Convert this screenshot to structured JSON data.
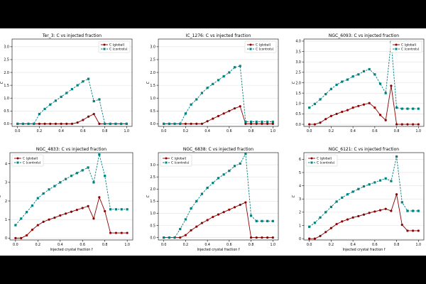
{
  "chart_data": [
    {
      "type": "line",
      "title": "Ter_3: C vs injected fraction",
      "xlabel": "",
      "ylabel": "C",
      "xlim": [
        -0.05,
        1.05
      ],
      "ylim": [
        -0.1,
        3.3
      ],
      "xticks": [
        "0.0",
        "0.2",
        "0.4",
        "0.6",
        "0.8",
        "1.0"
      ],
      "xtick_values": [
        0,
        0.2,
        0.4,
        0.6,
        0.8,
        1.0
      ],
      "yticks": [
        "0.0",
        "0.5",
        "1.0",
        "1.5",
        "2.0",
        "2.5",
        "3.0"
      ],
      "ytick_values": [
        0,
        0.5,
        1.0,
        1.5,
        2.0,
        2.5,
        3.0
      ],
      "x": [
        0,
        0.05,
        0.1,
        0.15,
        0.2,
        0.25,
        0.3,
        0.35,
        0.4,
        0.45,
        0.5,
        0.55,
        0.6,
        0.65,
        0.7,
        0.75,
        0.8,
        0.85,
        0.9,
        0.95,
        1.0
      ],
      "series": [
        {
          "name": "C (global)",
          "values": [
            0,
            0,
            0,
            0,
            0,
            0,
            0,
            0,
            0,
            0,
            0,
            0.05,
            0.15,
            0.28,
            0.38,
            0,
            0,
            0,
            0,
            0,
            0
          ]
        },
        {
          "name": "C (controls)",
          "values": [
            0,
            0,
            0,
            0,
            0.38,
            0.58,
            0.75,
            0.9,
            1.05,
            1.2,
            1.35,
            1.5,
            1.65,
            1.75,
            0.88,
            0.95,
            0,
            0,
            0,
            0,
            0
          ]
        }
      ],
      "legend": "top-right",
      "grid": "y"
    },
    {
      "type": "line",
      "title": "IC_1276: C vs injected fraction",
      "xlabel": "",
      "ylabel": "C",
      "xlim": [
        -0.05,
        1.05
      ],
      "ylim": [
        -0.1,
        3.3
      ],
      "xticks": [
        "0.0",
        "0.2",
        "0.4",
        "0.6",
        "0.8",
        "1.0"
      ],
      "xtick_values": [
        0,
        0.2,
        0.4,
        0.6,
        0.8,
        1.0
      ],
      "yticks": [
        "0.0",
        "0.5",
        "1.0",
        "1.5",
        "2.0",
        "2.5",
        "3.0"
      ],
      "ytick_values": [
        0,
        0.5,
        1.0,
        1.5,
        2.0,
        2.5,
        3.0
      ],
      "x": [
        0,
        0.05,
        0.1,
        0.15,
        0.2,
        0.25,
        0.3,
        0.35,
        0.4,
        0.45,
        0.5,
        0.55,
        0.6,
        0.65,
        0.7,
        0.75,
        0.8,
        0.85,
        0.9,
        0.95,
        1.0
      ],
      "series": [
        {
          "name": "C (global)",
          "values": [
            0,
            0,
            0,
            0,
            0,
            0,
            0,
            0,
            0.1,
            0.2,
            0.3,
            0.4,
            0.5,
            0.6,
            0.68,
            0,
            0,
            0,
            0,
            0,
            0
          ]
        },
        {
          "name": "C (controls)",
          "values": [
            0,
            0,
            0,
            0,
            0.4,
            0.75,
            0.95,
            1.2,
            1.4,
            1.55,
            1.7,
            1.85,
            2.0,
            2.2,
            2.25,
            0.08,
            0.08,
            0.08,
            0.08,
            0.08,
            0.08
          ]
        }
      ],
      "legend": "top-right",
      "grid": "y"
    },
    {
      "type": "line",
      "title": "NGC_6093: C vs injected fraction",
      "xlabel": "",
      "ylabel": "C",
      "xlim": [
        -0.05,
        1.05
      ],
      "ylim": [
        -0.1,
        4.1
      ],
      "xticks": [
        "0.0",
        "0.2",
        "0.4",
        "0.6",
        "0.8",
        "1.0"
      ],
      "xtick_values": [
        0,
        0.2,
        0.4,
        0.6,
        0.8,
        1.0
      ],
      "yticks": [
        "0.0",
        "0.5",
        "1.0",
        "1.5",
        "2.0",
        "2.5",
        "3.0",
        "3.5",
        "4.0"
      ],
      "ytick_values": [
        0,
        0.5,
        1.0,
        1.5,
        2.0,
        2.5,
        3.0,
        3.5,
        4.0
      ],
      "x": [
        0,
        0.05,
        0.1,
        0.15,
        0.2,
        0.25,
        0.3,
        0.35,
        0.4,
        0.45,
        0.5,
        0.55,
        0.6,
        0.65,
        0.7,
        0.75,
        0.8,
        0.85,
        0.9,
        0.95,
        1.0
      ],
      "series": [
        {
          "name": "C (global)",
          "values": [
            0,
            0,
            0.08,
            0.25,
            0.4,
            0.5,
            0.6,
            0.68,
            0.8,
            0.88,
            0.95,
            1.02,
            0.8,
            0.45,
            0.2,
            1.85,
            0,
            0,
            0,
            0,
            0
          ]
        },
        {
          "name": "C (controls)",
          "values": [
            0.8,
            0.98,
            1.2,
            1.45,
            1.7,
            1.9,
            2.05,
            2.15,
            2.3,
            2.4,
            2.55,
            2.65,
            2.4,
            1.95,
            1.5,
            3.95,
            0.8,
            0.75,
            0.75,
            0.75,
            0.75
          ]
        }
      ],
      "legend": "top-right",
      "grid": "y"
    },
    {
      "type": "line",
      "title": "NGC_4833: C vs injected fraction",
      "xlabel": "Injected crystal fraction f",
      "ylabel": "C",
      "xlim": [
        -0.05,
        1.05
      ],
      "ylim": [
        -0.1,
        4.6
      ],
      "xticks": [
        "0.0",
        "0.2",
        "0.4",
        "0.6",
        "0.8",
        "1.0"
      ],
      "xtick_values": [
        0,
        0.2,
        0.4,
        0.6,
        0.8,
        1.0
      ],
      "yticks": [
        "0",
        "1",
        "2",
        "3",
        "4"
      ],
      "ytick_values": [
        0,
        1,
        2,
        3,
        4
      ],
      "x": [
        0,
        0.05,
        0.1,
        0.15,
        0.2,
        0.25,
        0.3,
        0.35,
        0.4,
        0.45,
        0.5,
        0.55,
        0.6,
        0.65,
        0.7,
        0.75,
        0.8,
        0.85,
        0.9,
        0.95,
        1.0
      ],
      "series": [
        {
          "name": "C (global)",
          "values": [
            0,
            0,
            0.15,
            0.45,
            0.7,
            0.88,
            1.0,
            1.1,
            1.22,
            1.32,
            1.42,
            1.52,
            1.62,
            1.72,
            1.05,
            2.2,
            1.45,
            0.28,
            0.28,
            0.28,
            0.28
          ]
        },
        {
          "name": "C (controls)",
          "values": [
            0.7,
            1.05,
            1.4,
            1.75,
            2.15,
            2.4,
            2.62,
            2.8,
            3.0,
            3.18,
            3.35,
            3.5,
            3.65,
            3.8,
            3.0,
            4.5,
            3.35,
            1.55,
            1.55,
            1.55,
            1.55
          ]
        }
      ],
      "legend": "top-left",
      "grid": "y"
    },
    {
      "type": "line",
      "title": "NGC_6838: C vs injected fraction",
      "xlabel": "Injected crystal fraction f",
      "ylabel": "C",
      "xlim": [
        -0.05,
        1.05
      ],
      "ylim": [
        -0.1,
        3.5
      ],
      "xticks": [
        "0.0",
        "0.2",
        "0.4",
        "0.6",
        "0.8",
        "1.0"
      ],
      "xtick_values": [
        0,
        0.2,
        0.4,
        0.6,
        0.8,
        1.0
      ],
      "yticks": [
        "0.0",
        "0.5",
        "1.0",
        "1.5",
        "2.0",
        "2.5",
        "3.0"
      ],
      "ytick_values": [
        0,
        0.5,
        1.0,
        1.5,
        2.0,
        2.5,
        3.0
      ],
      "x": [
        0,
        0.05,
        0.1,
        0.15,
        0.2,
        0.25,
        0.3,
        0.35,
        0.4,
        0.45,
        0.5,
        0.55,
        0.6,
        0.65,
        0.7,
        0.75,
        0.8,
        0.85,
        0.9,
        0.95,
        1.0
      ],
      "series": [
        {
          "name": "C (global)",
          "values": [
            0,
            0,
            0,
            0,
            0.1,
            0.3,
            0.45,
            0.6,
            0.72,
            0.85,
            0.95,
            1.05,
            1.15,
            1.25,
            1.35,
            1.45,
            0,
            0,
            0,
            0,
            0
          ]
        },
        {
          "name": "C (controls)",
          "values": [
            0,
            0,
            0,
            0.35,
            0.75,
            1.2,
            1.5,
            1.8,
            2.05,
            2.25,
            2.45,
            2.6,
            2.75,
            2.95,
            3.05,
            3.45,
            0.9,
            0.68,
            0.68,
            0.68,
            0.68
          ]
        }
      ],
      "legend": "top-left",
      "grid": "y"
    },
    {
      "type": "line",
      "title": "NGC_6121: C vs injected fraction",
      "xlabel": "Injected crystal fraction f",
      "ylabel": "C",
      "xlim": [
        -0.05,
        1.05
      ],
      "ylim": [
        -0.1,
        6.5
      ],
      "xticks": [
        "0.0",
        "0.2",
        "0.4",
        "0.6",
        "0.8",
        "1.0"
      ],
      "xtick_values": [
        0,
        0.2,
        0.4,
        0.6,
        0.8,
        1.0
      ],
      "yticks": [
        "0",
        "1",
        "2",
        "3",
        "4",
        "5",
        "6"
      ],
      "ytick_values": [
        0,
        1,
        2,
        3,
        4,
        5,
        6
      ],
      "x": [
        0,
        0.05,
        0.1,
        0.15,
        0.2,
        0.25,
        0.3,
        0.35,
        0.4,
        0.45,
        0.5,
        0.55,
        0.6,
        0.65,
        0.7,
        0.75,
        0.8,
        0.85,
        0.9,
        0.95,
        1.0
      ],
      "series": [
        {
          "name": "C (global)",
          "values": [
            0,
            0,
            0.2,
            0.5,
            0.8,
            1.1,
            1.3,
            1.45,
            1.6,
            1.7,
            1.82,
            1.95,
            2.05,
            2.15,
            2.25,
            2.1,
            3.35,
            1.05,
            0.6,
            0.6,
            0.6
          ]
        },
        {
          "name": "C (controls)",
          "values": [
            0.9,
            1.2,
            1.6,
            2.0,
            2.4,
            2.8,
            3.1,
            3.35,
            3.55,
            3.75,
            3.95,
            4.1,
            4.25,
            4.4,
            4.55,
            4.35,
            6.2,
            2.75,
            2.1,
            2.1,
            2.1
          ]
        }
      ],
      "legend": "top-left",
      "grid": "y"
    }
  ],
  "colors": {
    "global": "#8b0000",
    "controls": "#008080",
    "grid": "#e2e2e2",
    "axis": "#000000"
  }
}
